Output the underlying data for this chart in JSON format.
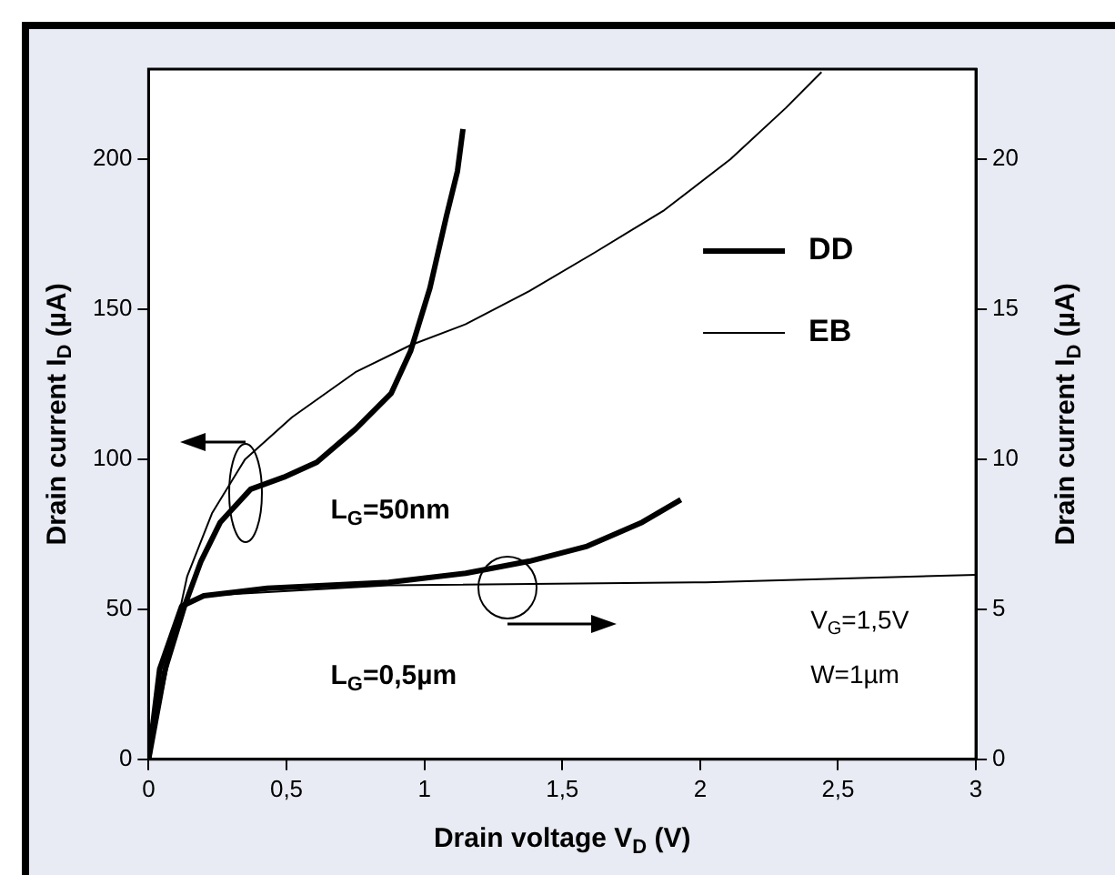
{
  "chart_data": {
    "type": "line",
    "xlabel": "Drain voltage V$_{D}$ (V)",
    "ylabel": "Drain current I$_{D}$ (µA)",
    "y2label": "Drain current I$_{D}$ (µA)",
    "series": [
      {
        "name": "DD",
        "color": "#000000",
        "x": [
          0,
          0.06,
          0.13,
          0.19,
          0.26,
          0.37,
          0.49,
          0.61,
          0.75,
          0.88,
          0.95,
          1.02,
          1.08,
          1.12,
          1.14
        ],
        "values": [
          0,
          30,
          51,
          66,
          79,
          90,
          94,
          99,
          110,
          122,
          136,
          157,
          181,
          196,
          210
        ]
      },
      {
        "name": "EB",
        "color": "#000000",
        "x": [
          0,
          0.06,
          0.14,
          0.23,
          0.35,
          0.52,
          0.75,
          0.95,
          1.15,
          1.38,
          1.62,
          1.87,
          2.11,
          2.31,
          2.44
        ],
        "values": [
          0,
          27,
          61,
          82,
          100,
          114,
          129,
          138,
          145,
          156,
          169,
          183,
          200,
          217,
          229
        ]
      },
      {
        "color": "#000000",
        "axis": "y2",
        "x": [
          0,
          0.04,
          0.12,
          0.2,
          0.43,
          0.87,
          1.15,
          1.38,
          1.59,
          1.79,
          1.93
        ],
        "values": [
          0,
          3.0,
          5.1,
          5.45,
          5.7,
          5.9,
          6.2,
          6.6,
          7.1,
          7.9,
          8.65
        ]
      },
      {
        "color": "#000000",
        "axis": "y2",
        "x": [
          0,
          0.04,
          0.12,
          0.2,
          0.87,
          2.02,
          3.0
        ],
        "values": [
          0,
          3.0,
          5.1,
          5.45,
          5.8,
          5.9,
          6.15
        ]
      }
    ],
    "xlim": [
      0,
      3
    ],
    "xticks": [
      0,
      {
        "value": 0.5,
        "label": "0,5"
      },
      1,
      {
        "value": 1.5,
        "label": "1,5"
      },
      2,
      {
        "value": 2.5,
        "label": "2,5"
      },
      3
    ],
    "ylim": [
      0,
      230
    ],
    "yticks": [
      0,
      50,
      100,
      150,
      200
    ],
    "y2lim": [
      0,
      23
    ],
    "y2ticks": [
      0,
      5,
      10,
      15,
      20
    ],
    "legend": "top right",
    "grid": false,
    "marker": "none",
    "line_style": "solid",
    "annotations": [
      "L$_{G}$=50nm",
      "L$_{G}$=0,5µm",
      "V$_{G}$=1,5V",
      "W=1µm"
    ]
  }
}
